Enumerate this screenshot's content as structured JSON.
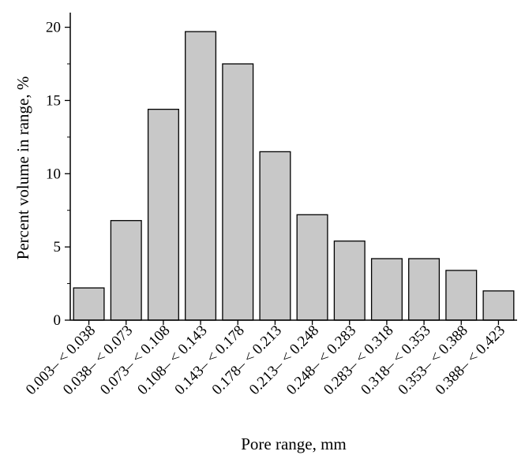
{
  "chart_data": {
    "type": "bar",
    "title": "",
    "xlabel": "Pore range, mm",
    "ylabel": "Percent volume in range, %",
    "ylim": [
      0,
      21
    ],
    "yticks": [
      0,
      5,
      10,
      15,
      20
    ],
    "grid": false,
    "legend": "none",
    "bar_color": "#c8c8c8",
    "bar_edge_color": "#000000",
    "categories": [
      "0.003– < 0.038",
      "0.038– < 0.073",
      "0.073– < 0.108",
      "0.108– < 0.143",
      "0.143– < 0.178",
      "0.178– < 0.213",
      "0.213– < 0.248",
      "0.248– < 0.283",
      "0.283– < 0.318",
      "0.318– < 0.353",
      "0.353– < 0.388",
      "0.388– < 0.423"
    ],
    "values": [
      2.2,
      6.8,
      14.4,
      19.7,
      17.5,
      11.5,
      7.2,
      5.4,
      4.2,
      4.2,
      3.4,
      2.0
    ]
  }
}
